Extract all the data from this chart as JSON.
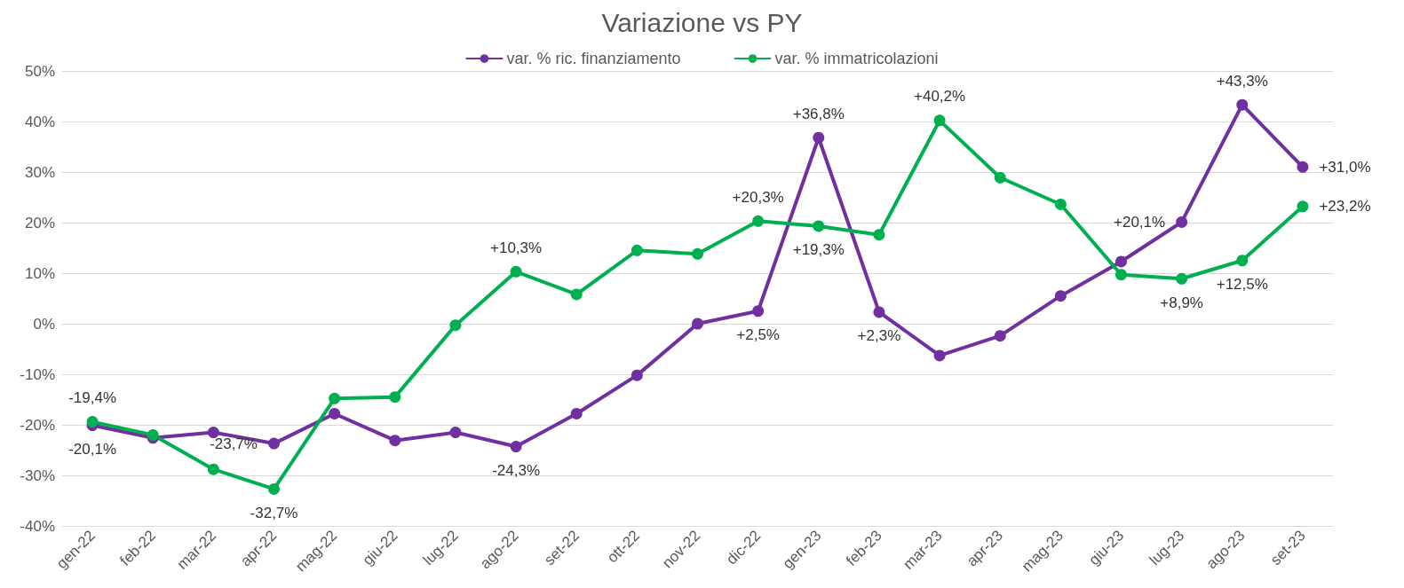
{
  "chart_data": {
    "type": "line",
    "title": "Variazione vs PY",
    "categories": [
      "gen-22",
      "feb-22",
      "mar-22",
      "apr-22",
      "mag-22",
      "giu-22",
      "lug-22",
      "ago-22",
      "set-22",
      "ott-22",
      "nov-22",
      "dic-22",
      "gen-23",
      "feb-23",
      "mar-23",
      "apr-23",
      "mag-23",
      "giu-23",
      "lug-23",
      "ago-23",
      "set-23"
    ],
    "series": [
      {
        "name": "var. % ric. finanziamento",
        "color": "#7030a0",
        "values": [
          -20.1,
          -22.6,
          -21.5,
          -23.7,
          -17.8,
          -23.1,
          -21.5,
          -24.3,
          -17.8,
          -10.2,
          0,
          2.5,
          36.8,
          2.3,
          -6.3,
          -2.4,
          5.5,
          12.3,
          20.1,
          43.3,
          31.0
        ],
        "value_labels": [
          "-20,1%",
          null,
          null,
          "-23,7%",
          null,
          null,
          null,
          "-24,3%",
          null,
          null,
          null,
          "+2,5%",
          "+36,8%",
          "+2,3%",
          null,
          null,
          null,
          null,
          "+20,1%",
          "+43,3%",
          "+31,0%"
        ]
      },
      {
        "name": "var. % immatricolazioni",
        "color": "#00b050",
        "values": [
          -19.4,
          -22.0,
          -28.8,
          -32.7,
          -14.8,
          -14.5,
          -0.3,
          10.3,
          5.8,
          14.5,
          13.8,
          20.3,
          19.3,
          17.6,
          40.2,
          28.9,
          23.6,
          9.7,
          8.9,
          12.5,
          23.2
        ],
        "value_labels": [
          "-19,4%",
          null,
          null,
          "-32,7%",
          null,
          null,
          null,
          "+10,3%",
          null,
          null,
          null,
          "+20,3%",
          "+19,3%",
          null,
          "+40,2%",
          null,
          null,
          null,
          "+8,9%",
          "+12,5%",
          "+23,2%"
        ]
      }
    ],
    "ylim": [
      -40,
      50
    ],
    "yticks": [
      {
        "value": -40,
        "label": "-40%"
      },
      {
        "value": -30,
        "label": "-30%"
      },
      {
        "value": -20,
        "label": "-20%"
      },
      {
        "value": -10,
        "label": "-10%"
      },
      {
        "value": 0,
        "label": "0%"
      },
      {
        "value": 10,
        "label": "10%"
      },
      {
        "value": 20,
        "label": "20%"
      },
      {
        "value": 30,
        "label": "30%"
      },
      {
        "value": 40,
        "label": "40%"
      },
      {
        "value": 50,
        "label": "50%"
      }
    ],
    "grid": "y",
    "legend": "top",
    "marker": "circle",
    "line_style": "solid"
  }
}
